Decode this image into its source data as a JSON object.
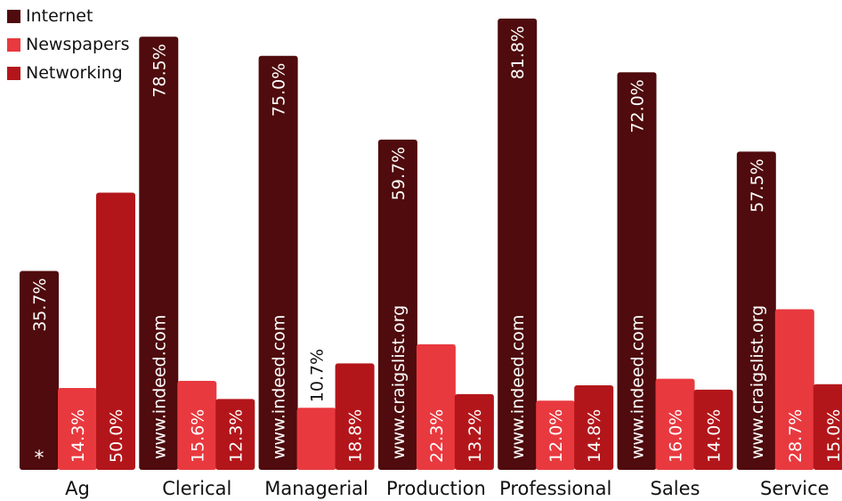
{
  "chart_data": {
    "type": "bar",
    "title": "",
    "xlabel": "",
    "ylabel": "",
    "ylim": [
      0,
      100
    ],
    "grid": false,
    "legend_position": "top-left",
    "categories": [
      "Ag",
      "Clerical",
      "Managerial",
      "Production",
      "Professional",
      "Sales",
      "Service"
    ],
    "series": [
      {
        "name": "Internet",
        "color": "#4f0b0d",
        "values": [
          35.7,
          78.5,
          75.0,
          59.7,
          81.8,
          72.0,
          57.5
        ],
        "labels": [
          "35.7%",
          "78.5%",
          "75.0%",
          "59.7%",
          "81.8%",
          "72.0%",
          "57.5%"
        ],
        "annotations": [
          "*",
          "www.indeed.com",
          "www.indeed.com",
          "www.craigslist.org",
          "www.indeed.com",
          "www.indeed.com",
          "www.craigslist.org"
        ]
      },
      {
        "name": "Newspapers",
        "color": "#e8393f",
        "values": [
          14.3,
          15.6,
          10.7,
          22.3,
          12.0,
          16.0,
          28.7
        ],
        "labels": [
          "14.3%",
          "15.6%",
          "10.7%",
          "22.3%",
          "12.0%",
          "16.0%",
          "28.7%"
        ]
      },
      {
        "name": "Networking",
        "color": "#b3161a",
        "values": [
          50.0,
          12.3,
          18.8,
          13.2,
          14.8,
          14.0,
          15.0
        ],
        "labels": [
          "50.0%",
          "12.3%",
          "18.8%",
          "13.2%",
          "14.8%",
          "14.0%",
          "15.0%"
        ]
      }
    ]
  }
}
